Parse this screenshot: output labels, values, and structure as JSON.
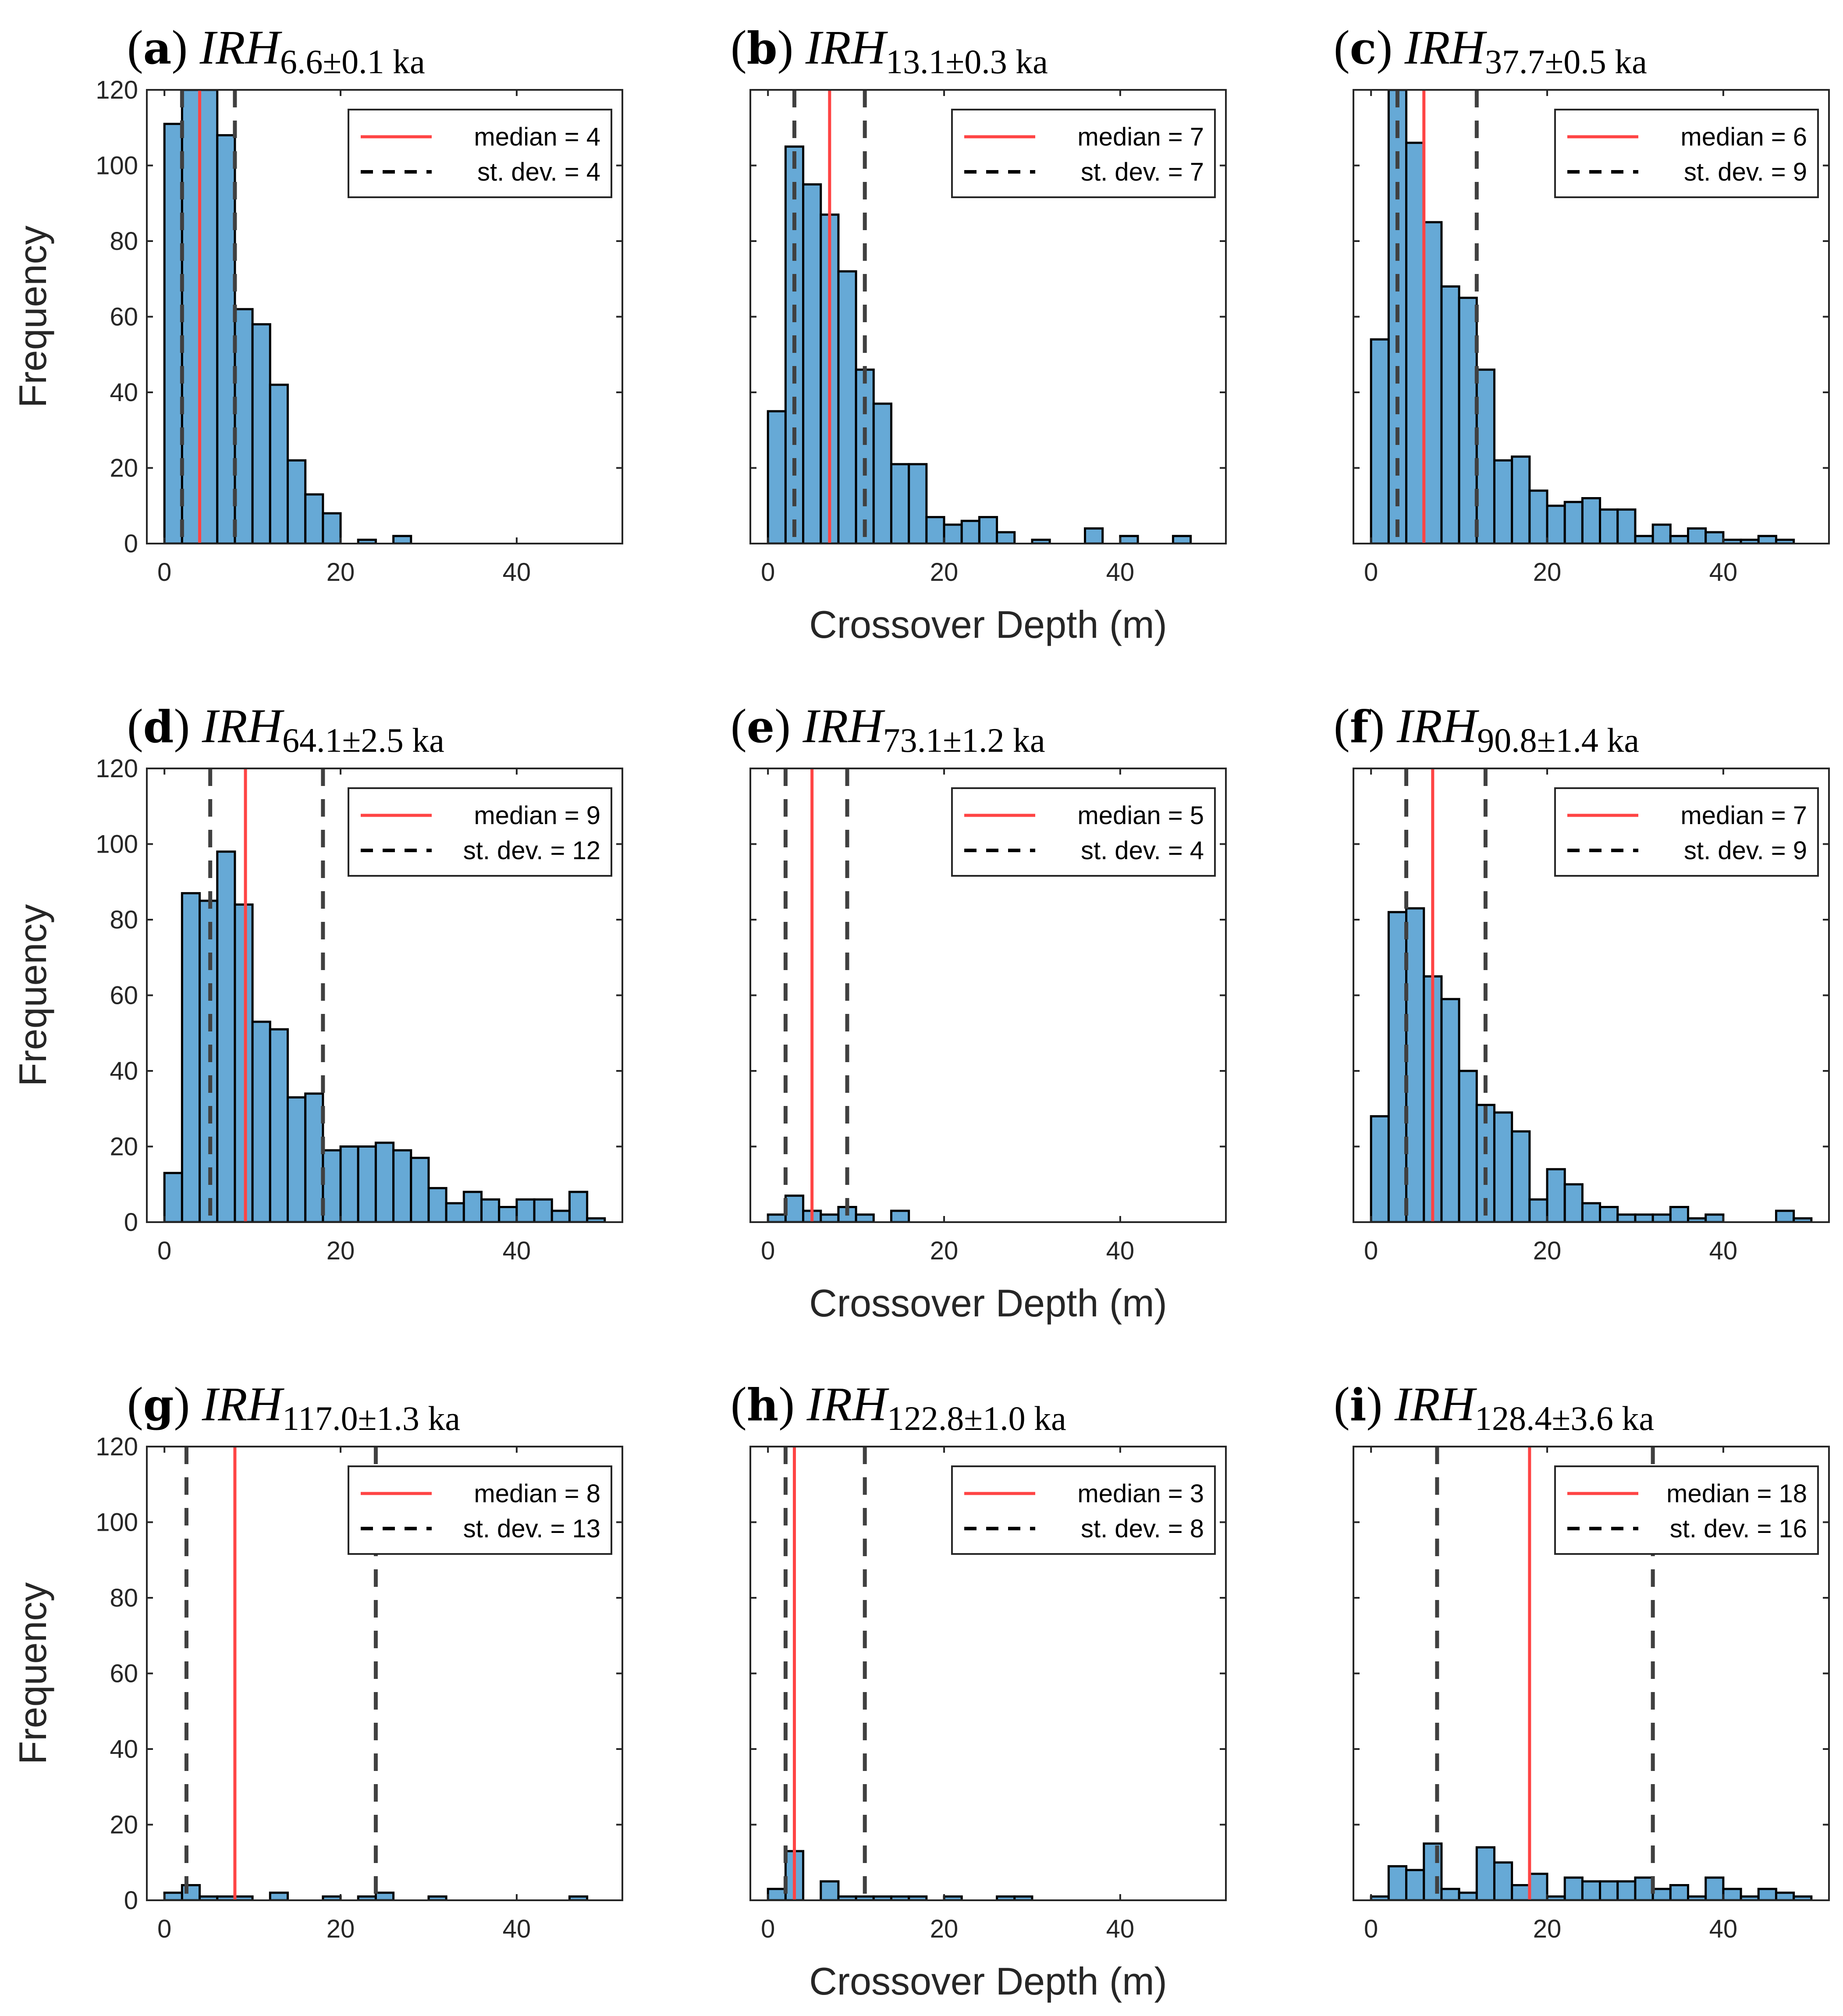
{
  "chart_data": [
    {
      "type": "bar",
      "panel": "a",
      "title_letter": "a",
      "title_main": "IRH",
      "title_sub": "6.6±0.1 ka",
      "xlabel": "",
      "ylabel": "Frequency",
      "xlim": [
        -2,
        52
      ],
      "ylim": [
        0,
        120
      ],
      "xticks": [
        "0",
        "20",
        "40"
      ],
      "yticks": [
        "0",
        "20",
        "40",
        "60",
        "80",
        "100",
        "120"
      ],
      "bin_width": 2,
      "bin_start": 0,
      "values": [
        111,
        135,
        128,
        108,
        62,
        58,
        42,
        22,
        13,
        8,
        0,
        1,
        0,
        2,
        0,
        0,
        0,
        0,
        0,
        0,
        0,
        0,
        0,
        0,
        0
      ],
      "median_line": 4,
      "stdev_lines": [
        2,
        8
      ],
      "legend": {
        "median_label": "median = 4",
        "stdev_label": "st. dev. = 4"
      }
    },
    {
      "type": "bar",
      "panel": "b",
      "title_letter": "b",
      "title_main": "IRH",
      "title_sub": "13.1±0.3 ka",
      "xlabel": "Crossover Depth (m)",
      "ylabel": "",
      "xlim": [
        -2,
        52
      ],
      "ylim": [
        0,
        120
      ],
      "xticks": [
        "0",
        "20",
        "40"
      ],
      "yticks": [],
      "bin_width": 2,
      "bin_start": 0,
      "values": [
        35,
        105,
        95,
        87,
        72,
        46,
        37,
        21,
        21,
        7,
        5,
        6,
        7,
        3,
        0,
        1,
        0,
        0,
        4,
        0,
        2,
        0,
        0,
        2,
        0
      ],
      "median_line": 7,
      "stdev_lines": [
        3,
        11
      ],
      "legend": {
        "median_label": "median = 7",
        "stdev_label": "st. dev. = 7"
      }
    },
    {
      "type": "bar",
      "panel": "c",
      "title_letter": "c",
      "title_main": "IRH",
      "title_sub": "37.7±0.5 ka",
      "xlabel": "",
      "ylabel": "",
      "xlim": [
        -2,
        52
      ],
      "ylim": [
        0,
        120
      ],
      "xticks": [
        "0",
        "20",
        "40"
      ],
      "yticks": [],
      "bin_width": 2,
      "bin_start": 0,
      "values": [
        54,
        130,
        106,
        85,
        68,
        65,
        46,
        22,
        23,
        14,
        10,
        11,
        12,
        9,
        9,
        2,
        5,
        2,
        4,
        3,
        1,
        1,
        2,
        1,
        0
      ],
      "median_line": 6,
      "stdev_lines": [
        3,
        12
      ],
      "legend": {
        "median_label": "median = 6",
        "stdev_label": "st. dev. = 9"
      }
    },
    {
      "type": "bar",
      "panel": "d",
      "title_letter": "d",
      "title_main": "IRH",
      "title_sub": "64.1±2.5 ka",
      "xlabel": "",
      "ylabel": "Frequency",
      "xlim": [
        -2,
        52
      ],
      "ylim": [
        0,
        120
      ],
      "xticks": [
        "0",
        "20",
        "40"
      ],
      "yticks": [
        "0",
        "20",
        "40",
        "60",
        "80",
        "100",
        "120"
      ],
      "bin_width": 2,
      "bin_start": 0,
      "values": [
        13,
        87,
        85,
        98,
        84,
        53,
        51,
        33,
        34,
        19,
        20,
        20,
        21,
        19,
        17,
        9,
        5,
        8,
        6,
        4,
        6,
        6,
        3,
        8,
        1
      ],
      "median_line": 9.2,
      "stdev_lines": [
        5.2,
        18
      ],
      "legend": {
        "median_label": "median = 9",
        "stdev_label": "st. dev. = 12"
      }
    },
    {
      "type": "bar",
      "panel": "e",
      "title_letter": "e",
      "title_main": "IRH",
      "title_sub": "73.1±1.2 ka",
      "xlabel": "Crossover Depth (m)",
      "ylabel": "",
      "xlim": [
        -2,
        52
      ],
      "ylim": [
        0,
        120
      ],
      "xticks": [
        "0",
        "20",
        "40"
      ],
      "yticks": [],
      "bin_width": 2,
      "bin_start": 0,
      "values": [
        2,
        7,
        3,
        2,
        4,
        2,
        0,
        3,
        0,
        0,
        0,
        0,
        0,
        0,
        0,
        0,
        0,
        0,
        0,
        0,
        0,
        0,
        0,
        0,
        0
      ],
      "median_line": 5,
      "stdev_lines": [
        2,
        9
      ],
      "legend": {
        "median_label": "median = 5",
        "stdev_label": "st. dev. = 4"
      }
    },
    {
      "type": "bar",
      "panel": "f",
      "title_letter": "f",
      "title_main": "IRH",
      "title_sub": "90.8±1.4 ka",
      "xlabel": "",
      "ylabel": "",
      "xlim": [
        -2,
        52
      ],
      "ylim": [
        0,
        120
      ],
      "xticks": [
        "0",
        "20",
        "40"
      ],
      "yticks": [],
      "bin_width": 2,
      "bin_start": 0,
      "values": [
        28,
        82,
        83,
        65,
        59,
        40,
        31,
        29,
        24,
        6,
        14,
        10,
        5,
        4,
        2,
        2,
        2,
        4,
        1,
        2,
        0,
        0,
        0,
        3,
        1
      ],
      "median_line": 7,
      "stdev_lines": [
        4,
        13
      ],
      "legend": {
        "median_label": "median = 7",
        "stdev_label": "st. dev. = 9"
      }
    },
    {
      "type": "bar",
      "panel": "g",
      "title_letter": "g",
      "title_main": "IRH",
      "title_sub": "117.0±1.3 ka",
      "xlabel": "",
      "ylabel": "Frequency",
      "xlim": [
        -2,
        52
      ],
      "ylim": [
        0,
        120
      ],
      "xticks": [
        "0",
        "20",
        "40"
      ],
      "yticks": [
        "0",
        "20",
        "40",
        "60",
        "80",
        "100",
        "120"
      ],
      "bin_width": 2,
      "bin_start": 0,
      "values": [
        2,
        4,
        1,
        1,
        1,
        0,
        2,
        0,
        0,
        1,
        0,
        1,
        2,
        0,
        0,
        1,
        0,
        0,
        0,
        0,
        0,
        0,
        0,
        1,
        0
      ],
      "median_line": 8,
      "stdev_lines": [
        2.5,
        24
      ],
      "legend": {
        "median_label": "median = 8",
        "stdev_label": "st. dev. = 13"
      }
    },
    {
      "type": "bar",
      "panel": "h",
      "title_letter": "h",
      "title_main": "IRH",
      "title_sub": "122.8±1.0 ka",
      "xlabel": "Crossover Depth (m)",
      "ylabel": "",
      "xlim": [
        -2,
        52
      ],
      "ylim": [
        0,
        120
      ],
      "xticks": [
        "0",
        "20",
        "40"
      ],
      "yticks": [],
      "bin_width": 2,
      "bin_start": 0,
      "values": [
        3,
        13,
        0,
        5,
        1,
        1,
        1,
        1,
        1,
        0,
        1,
        0,
        0,
        1,
        1,
        0,
        0,
        0,
        0,
        0,
        0,
        0,
        0,
        0,
        0
      ],
      "median_line": 3,
      "stdev_lines": [
        2,
        11
      ],
      "legend": {
        "median_label": "median = 3",
        "stdev_label": "st. dev. = 8"
      }
    },
    {
      "type": "bar",
      "panel": "i",
      "title_letter": "i",
      "title_main": "IRH",
      "title_sub": "128.4±3.6 ka",
      "xlabel": "",
      "ylabel": "",
      "xlim": [
        -2,
        52
      ],
      "ylim": [
        0,
        120
      ],
      "xticks": [
        "0",
        "20",
        "40"
      ],
      "yticks": [],
      "bin_width": 2,
      "bin_start": 0,
      "values": [
        1,
        9,
        8,
        15,
        3,
        2,
        14,
        10,
        4,
        7,
        1,
        6,
        5,
        5,
        5,
        6,
        3,
        4,
        1,
        6,
        3,
        1,
        3,
        2,
        1
      ],
      "median_line": 18,
      "stdev_lines": [
        7.5,
        32
      ],
      "legend": {
        "median_label": "median = 18",
        "stdev_label": "st. dev. = 16"
      }
    }
  ],
  "colors": {
    "bar_fill": "#66a9d6",
    "bar_edge": "#000000",
    "median_line": "#ff4444",
    "stdev_line": "#404040",
    "axis": "#262626"
  }
}
